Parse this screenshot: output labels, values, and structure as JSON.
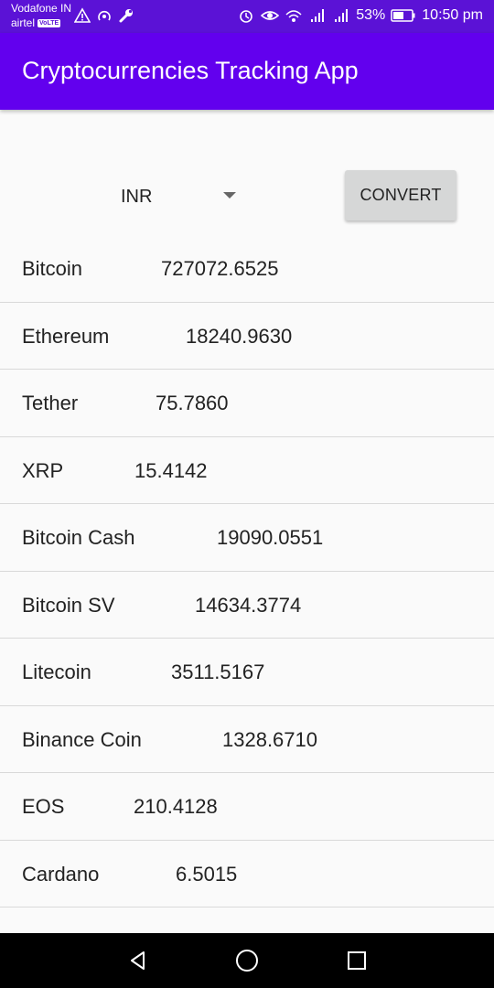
{
  "status_bar": {
    "carrier_primary": "Vodafone IN",
    "carrier_secondary": "airtel",
    "volte_badge": "VoLTE",
    "battery_percent": "53%",
    "time": "10:50 pm"
  },
  "app_bar": {
    "title": "Cryptocurrencies Tracking App",
    "color": "#6200ee"
  },
  "controls": {
    "currency_selected": "INR",
    "convert_label": "CONVERT"
  },
  "coins": [
    {
      "name": "Bitcoin",
      "price": "727072.6525"
    },
    {
      "name": "Ethereum",
      "price": "18240.9630"
    },
    {
      "name": "Tether",
      "price": "75.7860"
    },
    {
      "name": "XRP",
      "price": "15.4142"
    },
    {
      "name": "Bitcoin Cash",
      "price": "19090.0551"
    },
    {
      "name": "Bitcoin SV",
      "price": "14634.3774"
    },
    {
      "name": "Litecoin",
      "price": "3511.5167"
    },
    {
      "name": "Binance Coin",
      "price": "1328.6710"
    },
    {
      "name": "EOS",
      "price": "210.4128"
    },
    {
      "name": "Cardano",
      "price": "6.5015"
    }
  ],
  "nav_bar": {
    "icons": [
      "back-icon",
      "home-icon",
      "recents-icon"
    ]
  }
}
